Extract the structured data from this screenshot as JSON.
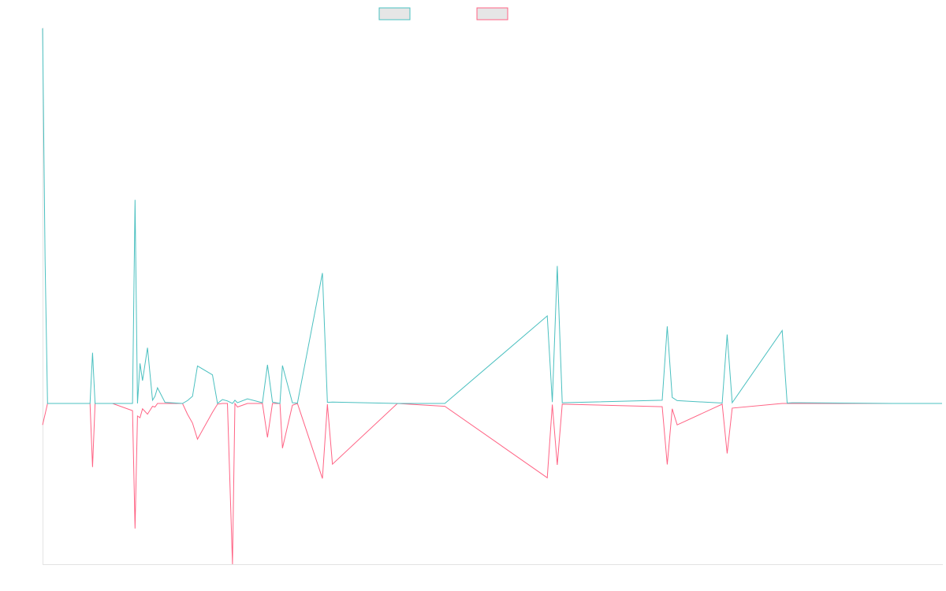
{
  "chart_data": {
    "type": "line",
    "x": [
      0,
      0.5,
      1,
      5,
      9.5,
      10,
      10.5,
      14,
      18,
      18.5,
      19,
      19.5,
      20,
      21,
      22,
      22.5,
      23,
      24.5,
      28,
      29,
      30,
      31,
      34,
      35,
      36,
      37,
      38,
      38.5,
      39,
      41,
      44,
      45,
      46,
      47.5,
      48,
      50,
      51,
      56,
      57,
      58,
      71,
      80.5,
      101,
      102,
      103,
      104,
      124,
      125,
      126,
      127,
      136,
      137,
      138,
      148,
      149,
      150,
      170,
      180
    ],
    "series": [
      {
        "name": "",
        "color": "#4bc0c0",
        "values": [
          10.5,
          4,
          0,
          0,
          0,
          1.42,
          0,
          0,
          0,
          5.7,
          0,
          1.12,
          0.64,
          1.56,
          0.09,
          0.2,
          0.44,
          0.03,
          0,
          0.08,
          0.2,
          1.05,
          0.8,
          0,
          0.11,
          0.07,
          0,
          0.09,
          0.02,
          0.13,
          0.02,
          1.08,
          0.04,
          0,
          1.06,
          0.02,
          0.01,
          3.65,
          0.03,
          0.04,
          0,
          0,
          2.45,
          0.04,
          3.85,
          0.02,
          0.09,
          2.16,
          0.17,
          0.08,
          0.01,
          1.93,
          0.02,
          2.04,
          0.01,
          0.02,
          0,
          0
        ]
      },
      {
        "name": "",
        "color": "#ff6384",
        "values": [
          -0.6,
          -0.3,
          0,
          0,
          0,
          -1.78,
          0,
          0,
          -0.2,
          -3.5,
          -0.35,
          -0.4,
          -0.15,
          -0.3,
          -0.08,
          -0.1,
          0,
          0,
          0,
          -0.3,
          -0.55,
          -1,
          -0.25,
          -0.02,
          0,
          0,
          -4.5,
          0,
          -0.1,
          0,
          0,
          -0.95,
          0,
          0,
          -1.25,
          -0.05,
          0,
          -2.1,
          -0.02,
          -1.7,
          0,
          -0.08,
          -2.08,
          -0.03,
          -1.72,
          -0.02,
          -0.09,
          -1.71,
          -0.15,
          -0.6,
          -0.02,
          -1.4,
          -0.13,
          0,
          0,
          0,
          0,
          0
        ]
      }
    ],
    "ylim": [
      -4.5,
      10.5
    ],
    "xlim": [
      0,
      180
    ],
    "grid": false,
    "legend": "top-center"
  }
}
